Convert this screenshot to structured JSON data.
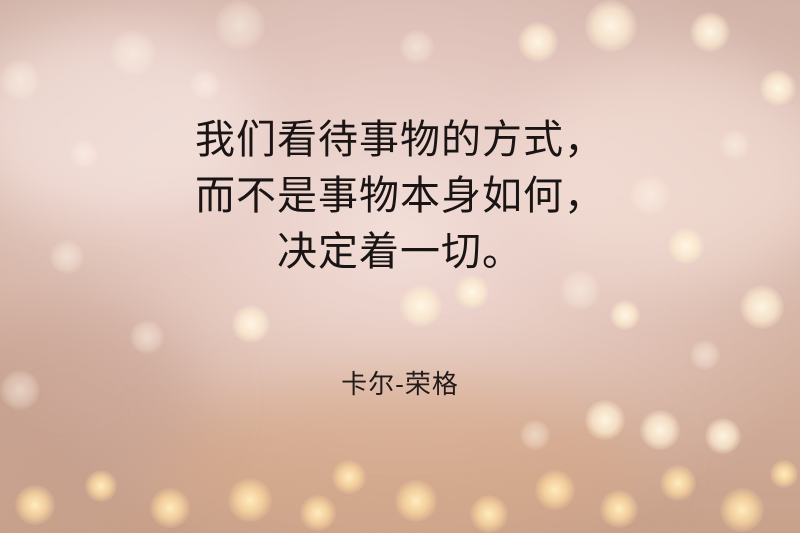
{
  "background": {
    "description_colors": [
      "#e6cfca",
      "#d8b8a8",
      "#c9a28a"
    ],
    "accent_bokeh": "#ffecc0"
  },
  "quote": {
    "lines": [
      "我们看待事物的方式，",
      "而不是事物本身如何，",
      "决定着一切。"
    ]
  },
  "author": "卡尔-荣格"
}
